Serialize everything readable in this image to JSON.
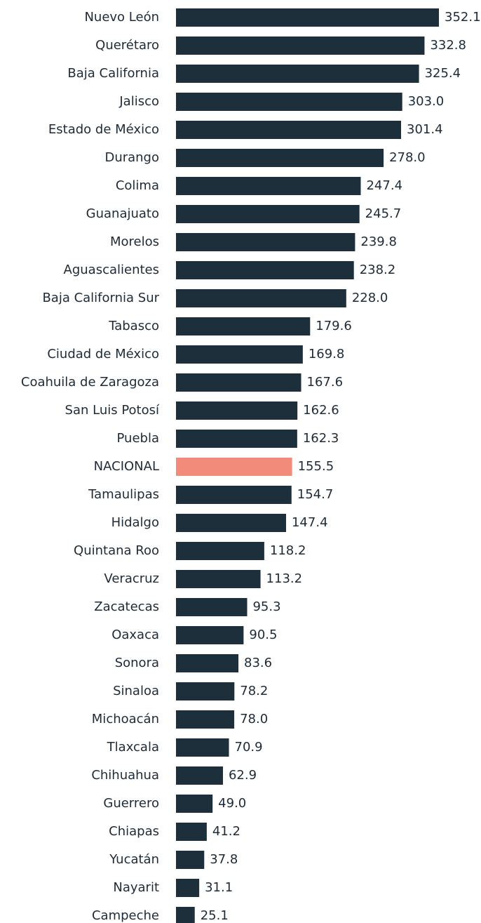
{
  "chart_data": {
    "type": "bar",
    "orientation": "horizontal",
    "categories": [
      "Nuevo León",
      "Querétaro",
      "Baja California",
      "Jalisco",
      "Estado de México",
      "Durango",
      "Colima",
      "Guanajuato",
      "Morelos",
      "Aguascalientes",
      "Baja California Sur",
      "Tabasco",
      "Ciudad de México",
      "Coahuila de Zaragoza",
      "San Luis Potosí",
      "Puebla",
      "NACIONAL",
      "Tamaulipas",
      "Hidalgo",
      "Quintana Roo",
      "Veracruz",
      "Zacatecas",
      "Oaxaca",
      "Sonora",
      "Sinaloa",
      "Michoacán",
      "Tlaxcala",
      "Chihuahua",
      "Guerrero",
      "Chiapas",
      "Yucatán",
      "Nayarit",
      "Campeche"
    ],
    "values": [
      352.1,
      332.8,
      325.4,
      303.0,
      301.4,
      278.0,
      247.4,
      245.7,
      239.8,
      238.2,
      228.0,
      179.6,
      169.8,
      167.6,
      162.6,
      162.3,
      155.5,
      154.7,
      147.4,
      118.2,
      113.2,
      95.3,
      90.5,
      83.6,
      78.2,
      78.0,
      70.9,
      62.9,
      49.0,
      41.2,
      37.8,
      31.1,
      25.1
    ],
    "value_labels": [
      "352.1",
      "332.8",
      "325.4",
      "303.0",
      "301.4",
      "278.0",
      "247.4",
      "245.7",
      "239.8",
      "238.2",
      "228.0",
      "179.6",
      "169.8",
      "167.6",
      "162.6",
      "162.3",
      "155.5",
      "154.7",
      "147.4",
      "118.2",
      "113.2",
      "95.3",
      "90.5",
      "83.6",
      "78.2",
      "78.0",
      "70.9",
      "62.9",
      "49.0",
      "41.2",
      "37.8",
      "31.1",
      "25.1"
    ],
    "colors": [
      "#1e2f3c",
      "#1e2f3c",
      "#1e2f3c",
      "#1e2f3c",
      "#1e2f3c",
      "#1e2f3c",
      "#1e2f3c",
      "#1e2f3c",
      "#1e2f3c",
      "#1e2f3c",
      "#1e2f3c",
      "#1e2f3c",
      "#1e2f3c",
      "#1e2f3c",
      "#1e2f3c",
      "#1e2f3c",
      "#f28b7a",
      "#1e2f3c",
      "#1e2f3c",
      "#1e2f3c",
      "#1e2f3c",
      "#1e2f3c",
      "#1e2f3c",
      "#1e2f3c",
      "#1e2f3c",
      "#1e2f3c",
      "#1e2f3c",
      "#1e2f3c",
      "#1e2f3c",
      "#1e2f3c",
      "#1e2f3c",
      "#1e2f3c",
      "#1e2f3c"
    ]
  }
}
